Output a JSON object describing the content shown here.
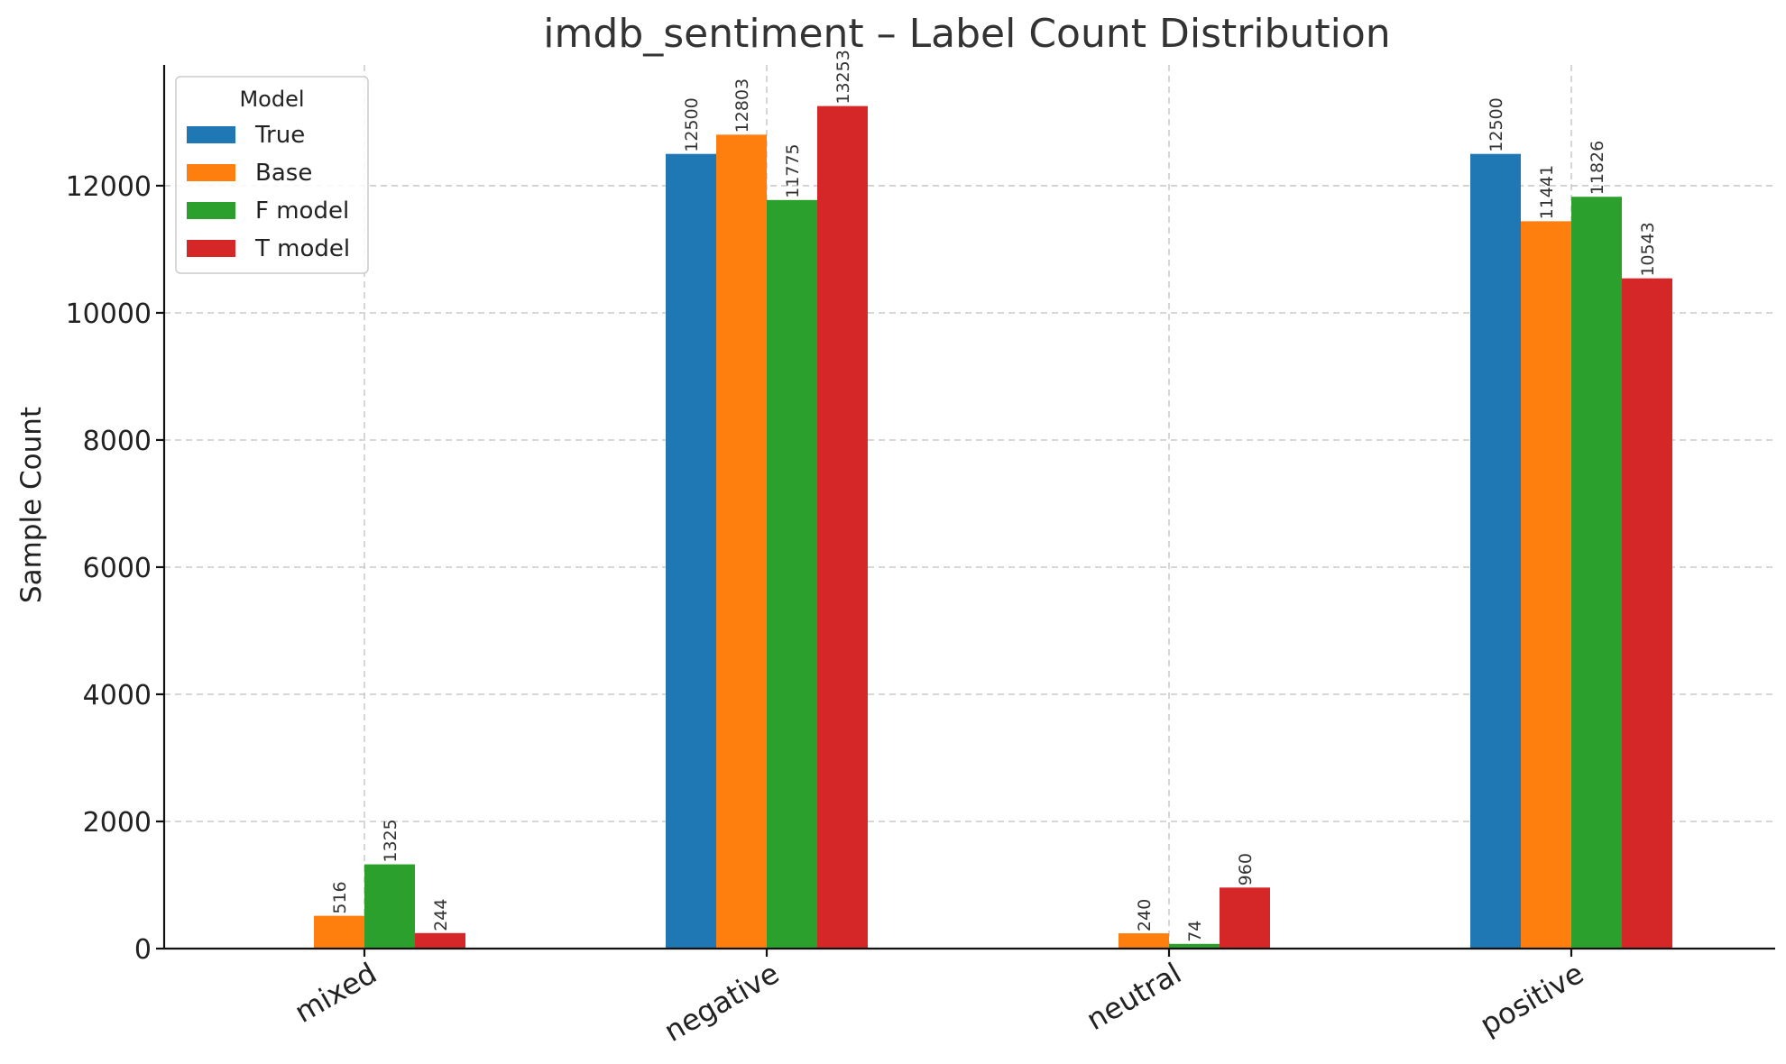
{
  "chart_data": {
    "type": "bar",
    "title": "imdb_sentiment – Label Count Distribution",
    "xlabel": "",
    "ylabel": "Sample Count",
    "categories": [
      "mixed",
      "negative",
      "neutral",
      "positive"
    ],
    "series": [
      {
        "name": "True",
        "color": "#1f77b4",
        "values": [
          0,
          12500,
          0,
          12500
        ]
      },
      {
        "name": "Base",
        "color": "#ff7f0e",
        "values": [
          516,
          12803,
          240,
          11441
        ]
      },
      {
        "name": "F model",
        "color": "#2ca02c",
        "values": [
          1325,
          11775,
          74,
          11826
        ]
      },
      {
        "name": "T model",
        "color": "#d62728",
        "values": [
          244,
          13253,
          960,
          10543
        ]
      }
    ],
    "ylim": [
      0,
      13900
    ],
    "yticks": [
      0,
      2000,
      4000,
      6000,
      8000,
      10000,
      12000
    ],
    "grid": true,
    "legend": {
      "title": "Model",
      "placement": "top-left"
    }
  }
}
